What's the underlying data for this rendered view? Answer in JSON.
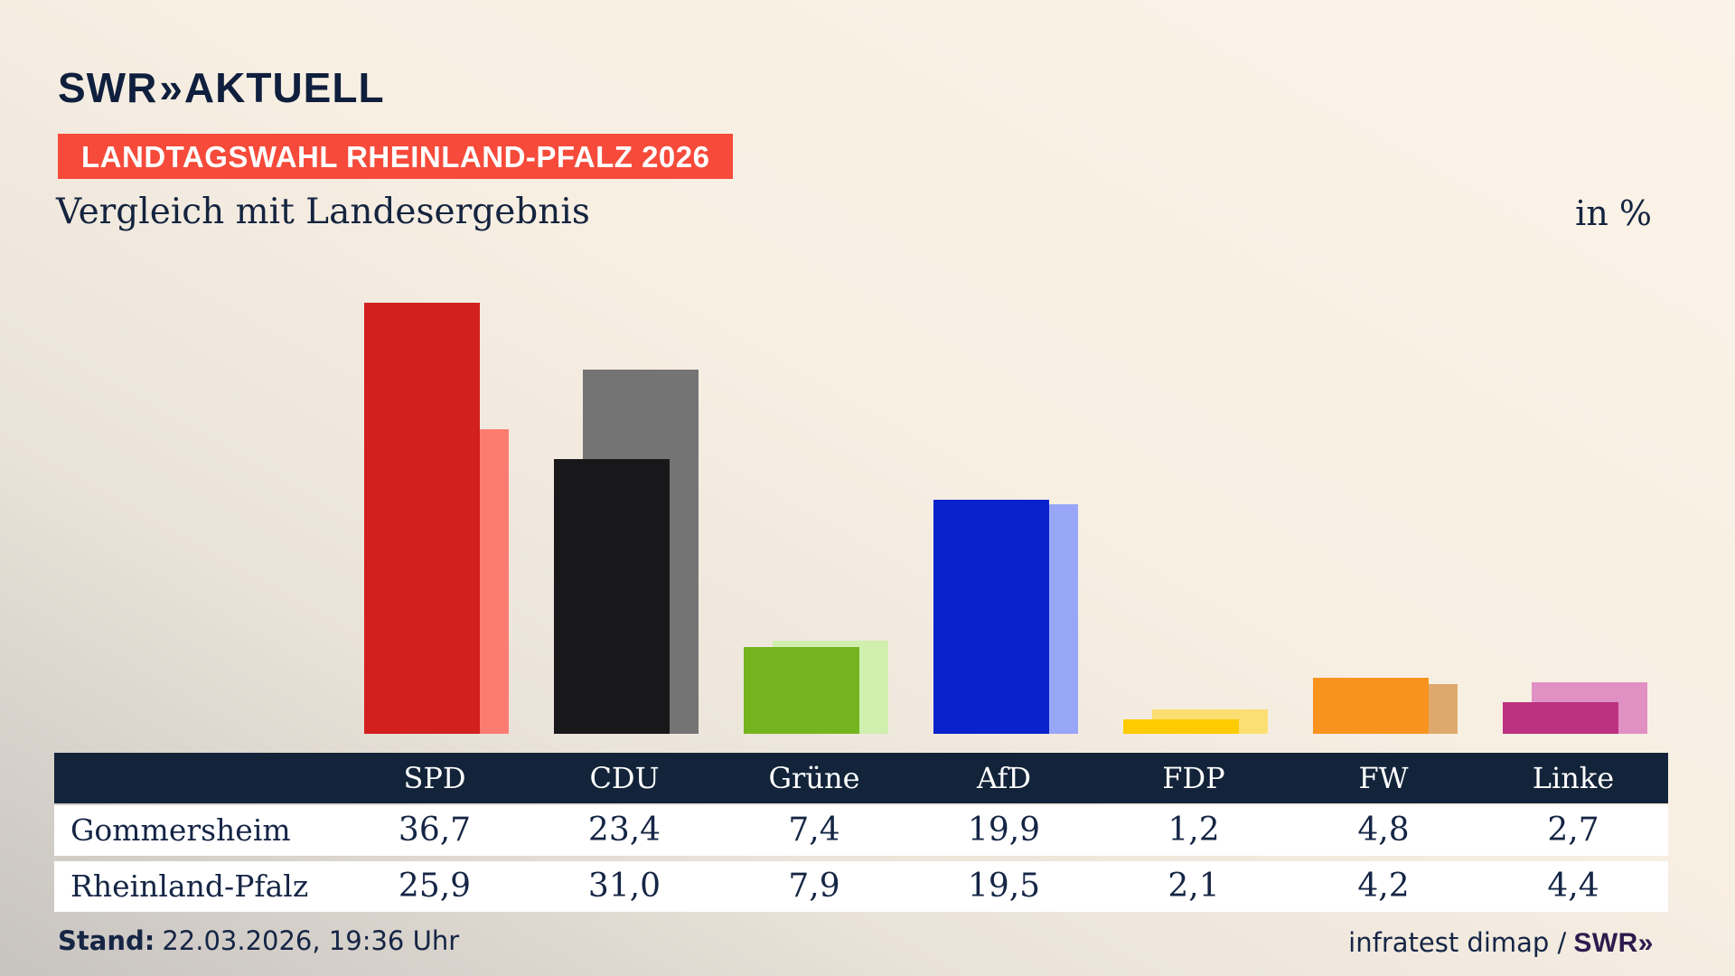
{
  "brand": {
    "logo_swr": "SWR",
    "logo_chevron": "»",
    "logo_suffix": "AKTUELL"
  },
  "badge": {
    "label": "LANDTAGSWAHL RHEINLAND-PFALZ 2026",
    "bg": "#f64a3a"
  },
  "title": "Vergleich mit Landesergebnis",
  "unit_label": "in %",
  "chart_data": {
    "type": "bar",
    "categories": [
      "SPD",
      "CDU",
      "Grüne",
      "AfD",
      "FDP",
      "FW",
      "Linke"
    ],
    "series": [
      {
        "name": "Gommersheim",
        "values": [
          36.7,
          23.4,
          7.4,
          19.9,
          1.2,
          4.8,
          2.7
        ]
      },
      {
        "name": "Rheinland-Pfalz",
        "values": [
          25.9,
          31.0,
          7.9,
          19.5,
          2.1,
          4.2,
          4.4
        ]
      }
    ],
    "colors": {
      "main": [
        "#d2201f",
        "#18181a",
        "#74b41e",
        "#0a22cb",
        "#fdcb00",
        "#f8941e",
        "#bc3280"
      ],
      "light": [
        "#fd7c72",
        "#747474",
        "#d0efae",
        "#98a6f7",
        "#fbdf72",
        "#dea96d",
        "#e190c3"
      ]
    },
    "title": "Vergleich mit Landesergebnis",
    "ylabel": "in %",
    "ylim": [
      0,
      40
    ],
    "grid": false,
    "legend_position": "table-row-labels",
    "value_format": "german-decimal-comma"
  },
  "table": {
    "columns": [
      "SPD",
      "CDU",
      "Grüne",
      "AfD",
      "FDP",
      "FW",
      "Linke"
    ],
    "rows": [
      {
        "label": "Gommersheim",
        "values": [
          "36,7",
          "23,4",
          "7,4",
          "19,9",
          "1,2",
          "4,8",
          "2,7"
        ]
      },
      {
        "label": "Rheinland-Pfalz",
        "values": [
          "25,9",
          "31,0",
          "7,9",
          "19,5",
          "2,1",
          "4,2",
          "4,4"
        ]
      }
    ],
    "header_bg": "#132339"
  },
  "footer": {
    "stand_label": "Stand:",
    "stand_value": "22.03.2026, 19:36 Uhr",
    "source": "infratest dimap /",
    "source_brand": "SWR»"
  }
}
